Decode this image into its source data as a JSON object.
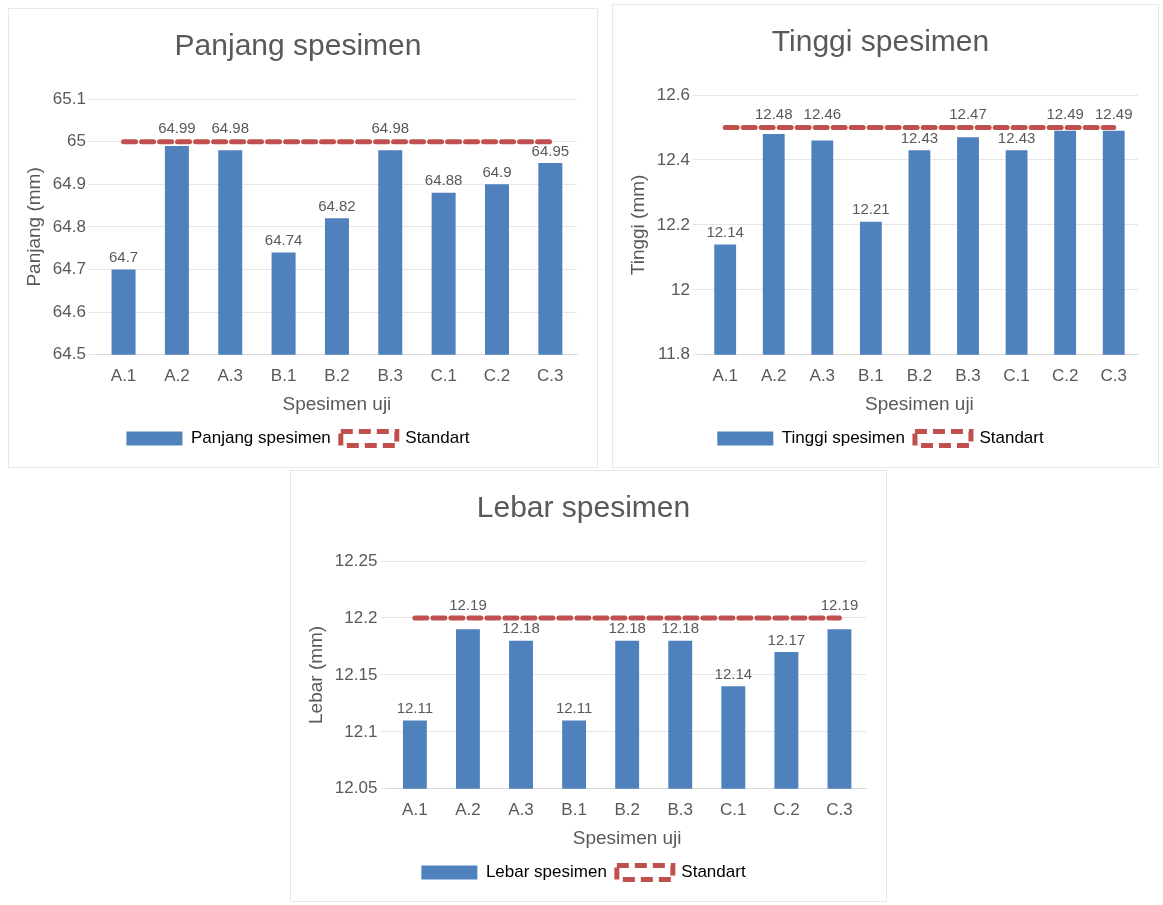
{
  "chart_data": [
    {
      "type": "bar",
      "title": "Panjang spesimen",
      "xlabel": "Spesimen uji",
      "ylabel": "Panjang (mm)",
      "categories": [
        "A.1",
        "A.2",
        "A.3",
        "B.1",
        "B.2",
        "B.3",
        "C.1",
        "C.2",
        "C.3"
      ],
      "ylim": [
        64.5,
        65.1
      ],
      "yticks": [
        64.5,
        64.6,
        64.7,
        64.8,
        64.9,
        65,
        65.1
      ],
      "grid": "y",
      "legend": "bottom",
      "series": [
        {
          "name": "Panjang spesimen",
          "color": "#4f81bd",
          "values": [
            64.7,
            64.99,
            64.98,
            64.74,
            64.82,
            64.98,
            64.88,
            64.9,
            64.95
          ],
          "value_labels": [
            "64.7",
            "64.99",
            "64.98",
            "64.74",
            "64.82",
            "64.98",
            "64.88",
            "64.9",
            "64.95"
          ]
        },
        {
          "name": "Standart",
          "type": "line",
          "color": "#c0504d",
          "line_style": "dashed",
          "marker": "none",
          "values": [
            65,
            65,
            65,
            65,
            65,
            65,
            65,
            65,
            65
          ]
        }
      ]
    },
    {
      "type": "bar",
      "title": "Tinggi spesimen",
      "xlabel": "Spesimen uji",
      "ylabel": "Tinggi (mm)",
      "categories": [
        "A.1",
        "A.2",
        "A.3",
        "B.1",
        "B.2",
        "B.3",
        "C.1",
        "C.2",
        "C.3"
      ],
      "ylim": [
        11.8,
        12.6
      ],
      "yticks": [
        11.8,
        12,
        12.2,
        12.4,
        12.6
      ],
      "grid": "y",
      "legend": "bottom",
      "series": [
        {
          "name": "Tinggi spesimen",
          "color": "#4f81bd",
          "values": [
            12.14,
            12.48,
            12.46,
            12.21,
            12.43,
            12.47,
            12.43,
            12.49,
            12.49
          ],
          "value_labels": [
            "12.14",
            "12.48",
            "12.46",
            "12.21",
            "12.43",
            "12.47",
            "12.43",
            "12.49",
            "12.49"
          ]
        },
        {
          "name": "Standart",
          "type": "line",
          "color": "#c0504d",
          "line_style": "dashed",
          "marker": "none",
          "values": [
            12.5,
            12.5,
            12.5,
            12.5,
            12.5,
            12.5,
            12.5,
            12.5,
            12.5
          ]
        }
      ]
    },
    {
      "type": "bar",
      "title": "Lebar spesimen",
      "xlabel": "Spesimen uji",
      "ylabel": "Lebar (mm)",
      "categories": [
        "A.1",
        "A.2",
        "A.3",
        "B.1",
        "B.2",
        "B.3",
        "C.1",
        "C.2",
        "C.3"
      ],
      "ylim": [
        12.05,
        12.25
      ],
      "yticks": [
        12.05,
        12.1,
        12.15,
        12.2,
        12.25
      ],
      "grid": "y",
      "legend": "bottom",
      "series": [
        {
          "name": "Lebar spesimen",
          "color": "#4f81bd",
          "values": [
            12.11,
            12.19,
            12.18,
            12.11,
            12.18,
            12.18,
            12.14,
            12.17,
            12.19
          ],
          "value_labels": [
            "12.11",
            "12.19",
            "12.18",
            "12.11",
            "12.18",
            "12.18",
            "12.14",
            "12.17",
            "12.19"
          ]
        },
        {
          "name": "Standart",
          "type": "line",
          "color": "#c0504d",
          "line_style": "dashed",
          "marker": "none",
          "values": [
            12.2,
            12.2,
            12.2,
            12.2,
            12.2,
            12.2,
            12.2,
            12.2,
            12.2
          ]
        }
      ]
    }
  ]
}
